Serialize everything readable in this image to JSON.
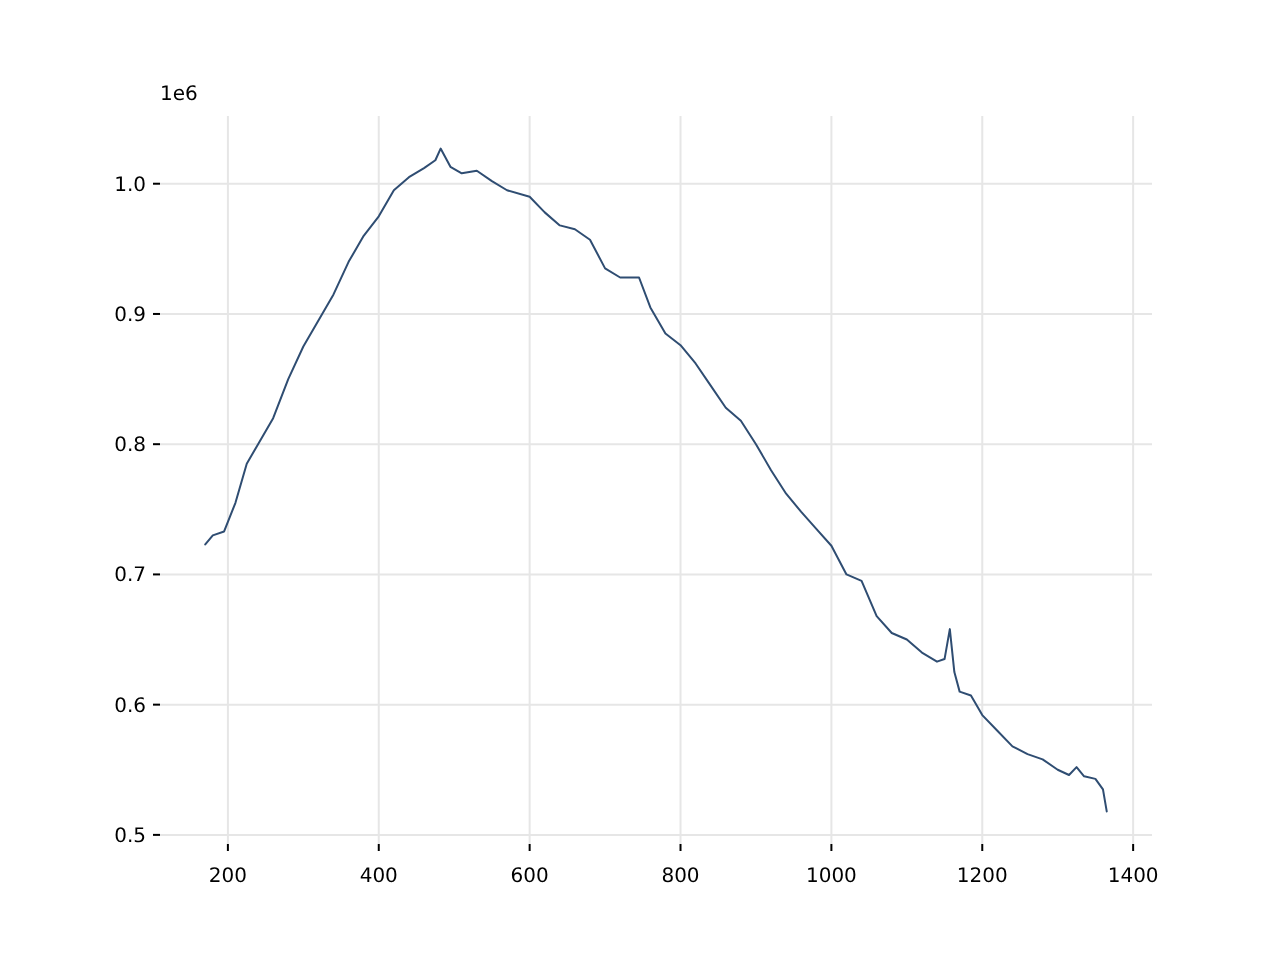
{
  "chart_data": {
    "type": "line",
    "annotations": [
      "1e6"
    ],
    "xlim": [
      110,
      1425
    ],
    "ylim": [
      0.493,
      1.052
    ],
    "xticks": [
      200,
      400,
      600,
      800,
      1000,
      1200,
      1400
    ],
    "yticks": [
      {
        "value": 0.5,
        "label": "0.5"
      },
      {
        "value": 0.6,
        "label": "0.6"
      },
      {
        "value": 0.7,
        "label": "0.7"
      },
      {
        "value": 0.8,
        "label": "0.8"
      },
      {
        "value": 0.9,
        "label": "0.9"
      },
      {
        "value": 1.0,
        "label": "1.0"
      }
    ],
    "grid": true,
    "series": [
      {
        "color": "#2f4d72",
        "x": [
          170,
          180,
          195,
          210,
          225,
          240,
          260,
          280,
          300,
          320,
          340,
          360,
          380,
          400,
          420,
          440,
          460,
          475,
          482,
          495,
          510,
          530,
          550,
          570,
          600,
          620,
          640,
          660,
          680,
          700,
          720,
          745,
          760,
          780,
          800,
          820,
          840,
          860,
          880,
          900,
          920,
          940,
          960,
          980,
          1000,
          1020,
          1040,
          1060,
          1080,
          1100,
          1120,
          1140,
          1150,
          1157,
          1163,
          1170,
          1185,
          1200,
          1220,
          1240,
          1260,
          1280,
          1300,
          1315,
          1325,
          1335,
          1350,
          1360,
          1365
        ],
        "values": [
          0.723,
          0.73,
          0.733,
          0.755,
          0.785,
          0.8,
          0.82,
          0.85,
          0.875,
          0.895,
          0.915,
          0.94,
          0.96,
          0.975,
          0.995,
          1.005,
          1.012,
          1.018,
          1.027,
          1.013,
          1.008,
          1.01,
          1.002,
          0.995,
          0.99,
          0.978,
          0.968,
          0.965,
          0.957,
          0.935,
          0.928,
          0.928,
          0.905,
          0.885,
          0.876,
          0.862,
          0.845,
          0.828,
          0.818,
          0.8,
          0.78,
          0.762,
          0.748,
          0.735,
          0.722,
          0.7,
          0.695,
          0.668,
          0.655,
          0.65,
          0.64,
          0.633,
          0.635,
          0.658,
          0.625,
          0.61,
          0.607,
          0.592,
          0.58,
          0.568,
          0.562,
          0.558,
          0.55,
          0.546,
          0.552,
          0.545,
          0.543,
          0.535,
          0.518
        ]
      }
    ]
  }
}
